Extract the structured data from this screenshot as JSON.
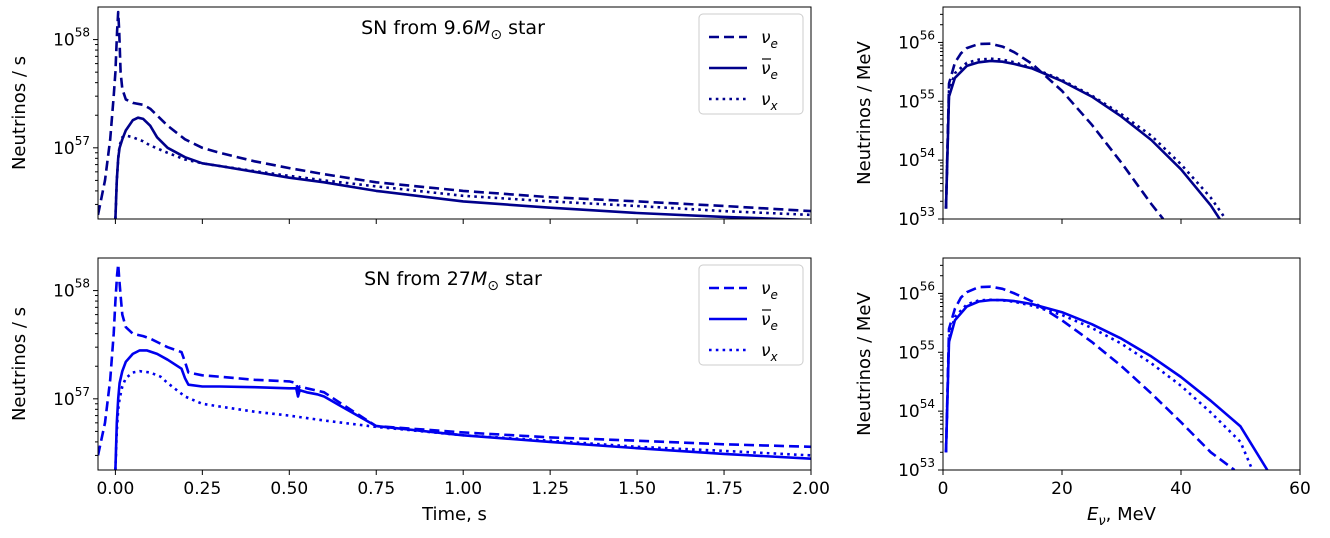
{
  "chart_data": [
    {
      "type": "line",
      "title": "SN from 9.6M⊙ star",
      "title_main": "SN from 9.6",
      "title_mass_symbol": "M",
      "title_sub": "⊙",
      "title_tail": " star",
      "xlabel": "",
      "ylabel": "Neutrinos / s",
      "yscale": "log",
      "xlim": [
        -0.05,
        2.0
      ],
      "ylim": [
        2.2e+56,
        2e+58
      ],
      "yticks": [
        {
          "v": 1e+57,
          "base": "10",
          "exp": "57"
        },
        {
          "v": 1e+58,
          "base": "10",
          "exp": "58"
        }
      ],
      "xticks": [
        -0.25,
        0,
        0.25,
        0.5,
        0.75,
        1.0,
        1.25,
        1.5,
        1.75,
        2.0
      ],
      "show_xticklabels": false,
      "color": "#00008b",
      "legend": "top-right",
      "series": [
        {
          "name": "νe",
          "sym": "ν",
          "sub": "e",
          "bar": false,
          "style": "dashed",
          "x": [
            -0.05,
            -0.03,
            -0.015,
            -0.005,
            0.0,
            0.005,
            0.008,
            0.011,
            0.015,
            0.02,
            0.03,
            0.05,
            0.08,
            0.1,
            0.15,
            0.2,
            0.25,
            0.3,
            0.4,
            0.5,
            0.6,
            0.75,
            1.0,
            1.25,
            1.5,
            1.75,
            2.0
          ],
          "y": [
            2.4e+56,
            5e+56,
            1.2e+57,
            3e+57,
            5e+57,
            1.2e+58,
            1.8e+58,
            1.2e+58,
            5e+57,
            3.5e+57,
            2.8e+57,
            2.6e+57,
            2.5e+57,
            2.3e+57,
            1.6e+57,
            1.2e+57,
            1e+57,
            9e+56,
            7.5e+56,
            6.5e+56,
            5.7e+56,
            4.8e+56,
            4e+56,
            3.5e+56,
            3.2e+56,
            2.9e+56,
            2.6e+56
          ]
        },
        {
          "name": "ν̄e",
          "sym": "ν",
          "sub": "e",
          "bar": true,
          "style": "solid",
          "x": [
            0.0,
            0.004,
            0.008,
            0.012,
            0.02,
            0.03,
            0.05,
            0.065,
            0.08,
            0.1,
            0.12,
            0.15,
            0.2,
            0.25,
            0.3,
            0.4,
            0.5,
            0.6,
            0.75,
            1.0,
            1.25,
            1.5,
            1.75,
            2.0
          ],
          "y": [
            2.2e+56,
            5e+56,
            8e+56,
            1e+57,
            1.2e+57,
            1.45e+57,
            1.8e+57,
            1.9e+57,
            1.85e+57,
            1.6e+57,
            1.25e+57,
            1e+57,
            8.2e+56,
            7.2e+56,
            6.8e+56,
            6e+56,
            5.3e+56,
            4.8e+56,
            4e+56,
            3.2e+56,
            2.8e+56,
            2.5e+56,
            2.3e+56,
            2.15e+56
          ]
        },
        {
          "name": "νx",
          "sym": "ν",
          "sub": "x",
          "bar": false,
          "style": "dotted",
          "x": [
            0.0,
            0.004,
            0.008,
            0.012,
            0.02,
            0.03,
            0.05,
            0.08,
            0.1,
            0.15,
            0.2,
            0.25,
            0.3,
            0.4,
            0.5,
            0.6,
            0.75,
            1.0,
            1.25,
            1.5,
            1.75,
            2.0
          ],
          "y": [
            2.2e+56,
            5e+56,
            8e+56,
            1.05e+57,
            1.25e+57,
            1.3e+57,
            1.25e+57,
            1.15e+57,
            1.05e+57,
            9e+56,
            7.8e+56,
            7.2e+56,
            6.8e+56,
            6.1e+56,
            5.5e+56,
            5e+56,
            4.4e+56,
            3.6e+56,
            3.2e+56,
            2.9e+56,
            2.6e+56,
            2.4e+56
          ]
        }
      ]
    },
    {
      "type": "line",
      "title": "",
      "xlabel": "",
      "ylabel": "Neutrinos / MeV",
      "yscale": "log",
      "xlim": [
        0,
        60
      ],
      "ylim": [
        1e+53,
        4e+56
      ],
      "yticks": [
        {
          "v": 1e+53,
          "base": "10",
          "exp": "53"
        },
        {
          "v": 1e+54,
          "base": "10",
          "exp": "54"
        },
        {
          "v": 1e+55,
          "base": "10",
          "exp": "55"
        },
        {
          "v": 1e+56,
          "base": "10",
          "exp": "56"
        }
      ],
      "xticks": [
        0,
        20,
        40,
        60
      ],
      "show_xticklabels": false,
      "color": "#00008b",
      "series": [
        {
          "name": "νe",
          "style": "dashed",
          "x": [
            0.5,
            1,
            2,
            3,
            4,
            6,
            8,
            10,
            12,
            15,
            20,
            25,
            30,
            35,
            37
          ],
          "y": [
            1.5e+53,
            2e+55,
            4.5e+55,
            6.5e+55,
            8e+55,
            9.4e+55,
            9.5e+55,
            8.5e+55,
            6.8e+55,
            4.3e+55,
            1.5e+55,
            4e+54,
            9e+53,
            1.8e+53,
            1e+53
          ]
        },
        {
          "name": "ν̄e",
          "style": "solid",
          "x": [
            0.5,
            1,
            2,
            4,
            6,
            8,
            10,
            12,
            15,
            20,
            25,
            30,
            35,
            40,
            45,
            46.5
          ],
          "y": [
            1.5e+53,
            1.2e+55,
            2.5e+55,
            4e+55,
            4.6e+55,
            4.85e+55,
            4.7e+55,
            4.3e+55,
            3.6e+55,
            2.2e+55,
            1.2e+55,
            5.5e+54,
            2.2e+54,
            7e+53,
            1.7e+53,
            1e+53
          ]
        },
        {
          "name": "νx",
          "style": "dotted",
          "x": [
            0.5,
            1,
            2,
            4,
            6,
            8,
            10,
            12,
            15,
            20,
            25,
            30,
            35,
            40,
            45,
            47.5
          ],
          "y": [
            1.5e+53,
            1.5e+55,
            3e+55,
            4.5e+55,
            5.1e+55,
            5.3e+55,
            5.1e+55,
            4.6e+55,
            3.7e+55,
            2.3e+55,
            1.25e+55,
            6e+54,
            2.6e+54,
            8.5e+53,
            2.3e+53,
            1e+53
          ]
        }
      ]
    },
    {
      "type": "line",
      "title": "SN from 27M⊙ star",
      "title_main": "SN from 27",
      "title_mass_symbol": "M",
      "title_sub": "⊙",
      "title_tail": " star",
      "xlabel": "Time, s",
      "ylabel": "Neutrinos / s",
      "yscale": "log",
      "xlim": [
        -0.05,
        2.0
      ],
      "ylim": [
        2.2e+56,
        2e+58
      ],
      "yticks": [
        {
          "v": 1e+57,
          "base": "10",
          "exp": "57"
        },
        {
          "v": 1e+58,
          "base": "10",
          "exp": "58"
        }
      ],
      "xticks": [
        -0.25,
        0,
        0.25,
        0.5,
        0.75,
        1.0,
        1.25,
        1.5,
        1.75,
        2.0
      ],
      "xtick_labels": [
        "−0.25",
        "0.00",
        "0.25",
        "0.50",
        "0.75",
        "1.00",
        "1.25",
        "1.50",
        "1.75",
        "2.00"
      ],
      "show_xticklabels": true,
      "color": "#0000ee",
      "legend": "top-right",
      "series": [
        {
          "name": "νe",
          "sym": "ν",
          "sub": "e",
          "bar": false,
          "style": "dashed",
          "x": [
            -0.05,
            -0.03,
            -0.015,
            -0.005,
            0.0,
            0.005,
            0.008,
            0.011,
            0.015,
            0.02,
            0.03,
            0.05,
            0.08,
            0.1,
            0.15,
            0.19,
            0.2,
            0.21,
            0.25,
            0.3,
            0.4,
            0.5,
            0.52,
            0.525,
            0.53,
            0.55,
            0.6,
            0.65,
            0.75,
            1.0,
            1.25,
            1.5,
            1.75,
            2.0
          ],
          "y": [
            3e+56,
            6e+56,
            1.5e+57,
            4e+57,
            8e+57,
            1.4e+58,
            1.75e+58,
            1.3e+58,
            9e+57,
            6e+57,
            4.6e+57,
            4e+57,
            3.8e+57,
            3.6e+57,
            3e+57,
            2.7e+57,
            2.2e+57,
            1.75e+57,
            1.65e+57,
            1.6e+57,
            1.5e+57,
            1.45e+57,
            1.4e+57,
            1.2e+57,
            1.3e+57,
            1.25e+57,
            1.15e+57,
            9e+56,
            5.6e+56,
            4.9e+56,
            4.4e+56,
            4.1e+56,
            3.8e+56,
            3.6e+56
          ]
        },
        {
          "name": "ν̄e",
          "sym": "ν",
          "sub": "e",
          "bar": true,
          "style": "solid",
          "x": [
            0.0,
            0.004,
            0.008,
            0.012,
            0.02,
            0.03,
            0.05,
            0.07,
            0.09,
            0.12,
            0.15,
            0.19,
            0.2,
            0.21,
            0.25,
            0.3,
            0.4,
            0.5,
            0.51,
            0.52,
            0.525,
            0.53,
            0.55,
            0.58,
            0.6,
            0.65,
            0.75,
            1.0,
            1.25,
            1.5,
            1.75,
            2.0
          ],
          "y": [
            2.2e+56,
            6e+56,
            1e+57,
            1.4e+57,
            1.8e+57,
            2.2e+57,
            2.6e+57,
            2.8e+57,
            2.8e+57,
            2.6e+57,
            2.3e+57,
            1.9e+57,
            1.55e+57,
            1.35e+57,
            1.3e+57,
            1.3e+57,
            1.28e+57,
            1.25e+57,
            1.25e+57,
            1.25e+57,
            1.05e+57,
            1.2e+57,
            1.15e+57,
            1.1e+57,
            1.05e+57,
            8.5e+56,
            5.6e+56,
            4.6e+56,
            4e+56,
            3.5e+56,
            3.1e+56,
            2.8e+56
          ]
        },
        {
          "name": "νx",
          "sym": "ν",
          "sub": "x",
          "bar": false,
          "style": "dotted",
          "x": [
            0.0,
            0.004,
            0.008,
            0.012,
            0.02,
            0.03,
            0.05,
            0.07,
            0.1,
            0.13,
            0.15,
            0.2,
            0.25,
            0.3,
            0.4,
            0.5,
            0.6,
            0.75,
            1.0,
            1.25,
            1.5,
            1.75,
            2.0
          ],
          "y": [
            2.2e+56,
            5e+56,
            8e+56,
            1e+57,
            1.3e+57,
            1.55e+57,
            1.75e+57,
            1.8e+57,
            1.75e+57,
            1.6e+57,
            1.4e+57,
            1.05e+57,
            9e+56,
            8.5e+56,
            7.6e+56,
            7e+56,
            6.3e+56,
            5.5e+56,
            4.6e+56,
            4.1e+56,
            3.6e+56,
            3.3e+56,
            3e+56
          ]
        }
      ]
    },
    {
      "type": "line",
      "title": "",
      "xlabel": "Eν, MeV",
      "xlabel_sym": "E",
      "xlabel_sub": "ν",
      "xlabel_tail": ", MeV",
      "ylabel": "Neutrinos / MeV",
      "yscale": "log",
      "xlim": [
        0,
        60
      ],
      "ylim": [
        1e+53,
        4e+56
      ],
      "yticks": [
        {
          "v": 1e+53,
          "base": "10",
          "exp": "53"
        },
        {
          "v": 1e+54,
          "base": "10",
          "exp": "54"
        },
        {
          "v": 1e+55,
          "base": "10",
          "exp": "55"
        },
        {
          "v": 1e+56,
          "base": "10",
          "exp": "56"
        }
      ],
      "xticks": [
        0,
        20,
        40,
        60
      ],
      "xtick_labels": [
        "0",
        "20",
        "40",
        "60"
      ],
      "show_xticklabels": true,
      "color": "#0000ee",
      "series": [
        {
          "name": "νe",
          "style": "dashed",
          "x": [
            0.5,
            1,
            2,
            3,
            4,
            6,
            8,
            10,
            12,
            15,
            20,
            25,
            30,
            35,
            40,
            45,
            49
          ],
          "y": [
            2e+53,
            2.5e+55,
            5.5e+55,
            8.5e+55,
            1.05e+56,
            1.28e+56,
            1.3e+56,
            1.2e+56,
            1e+56,
            7.3e+55,
            3.5e+55,
            1.5e+55,
            5.8e+54,
            2e+54,
            6.5e+53,
            2e+53,
            1e+53
          ]
        },
        {
          "name": "ν̄e",
          "style": "solid",
          "x": [
            0.5,
            1,
            2,
            4,
            6,
            8,
            10,
            12,
            15,
            20,
            25,
            30,
            35,
            40,
            45,
            50,
            54.5
          ],
          "y": [
            2e+53,
            1.5e+55,
            3.5e+55,
            6e+55,
            7.3e+55,
            7.7e+55,
            7.7e+55,
            7.4e+55,
            6.6e+55,
            4.8e+55,
            3e+55,
            1.7e+55,
            8.5e+54,
            3.8e+54,
            1.5e+54,
            5.5e+53,
            1e+53
          ]
        },
        {
          "name": "νx",
          "style": "dotted",
          "x": [
            0.5,
            1,
            2,
            4,
            6,
            8,
            10,
            12,
            15,
            20,
            25,
            30,
            35,
            40,
            45,
            50,
            52
          ],
          "y": [
            2e+53,
            1.8e+55,
            4e+55,
            6.5e+55,
            7.6e+55,
            7.8e+55,
            7.6e+55,
            7.2e+55,
            6.2e+55,
            4.3e+55,
            2.6e+55,
            1.4e+55,
            6.5e+54,
            2.7e+54,
            9.5e+53,
            3e+53,
            1e+53
          ]
        }
      ]
    }
  ]
}
